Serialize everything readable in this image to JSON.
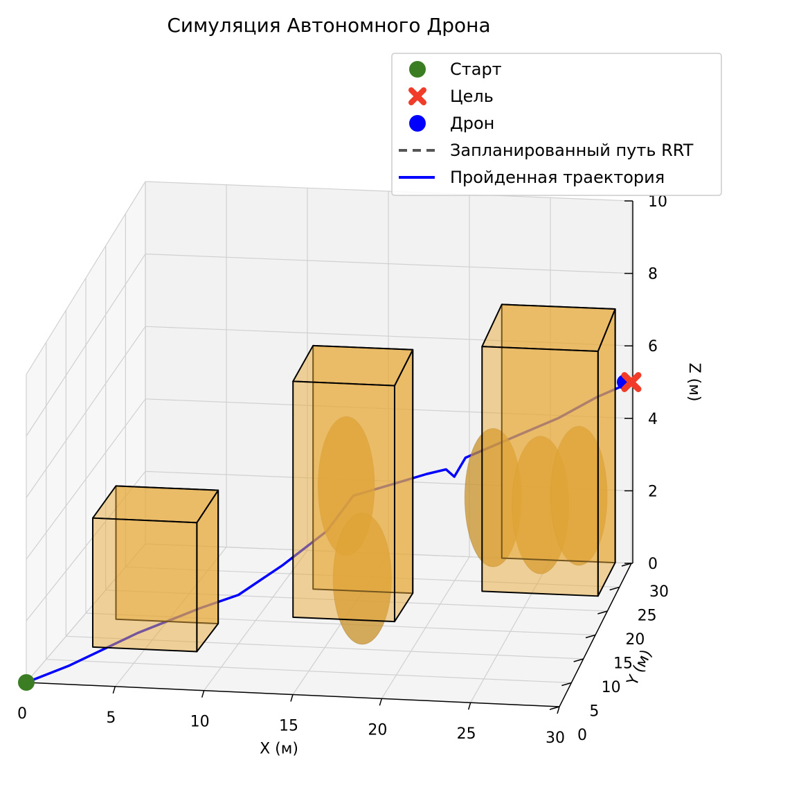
{
  "chart_data": {
    "type": "scatter3d",
    "title": "Симуляция Автономного Дрона",
    "xlabel": "X (м)",
    "ylabel": "Y (м)",
    "zlabel": "Z (м)",
    "xlim": [
      0,
      30
    ],
    "ylim": [
      0,
      30
    ],
    "zlim": [
      0,
      10
    ],
    "xticks": [
      "0",
      "5",
      "10",
      "15",
      "20",
      "25",
      "30"
    ],
    "yticks": [
      "0",
      "5",
      "10",
      "15",
      "20",
      "25",
      "30"
    ],
    "zticks": [
      "0",
      "2",
      "4",
      "6",
      "8",
      "10"
    ],
    "grid": true,
    "legend_position": "top-right",
    "legend": [
      {
        "key": "start",
        "label": "Старт",
        "color": "#3a7d22",
        "marker": "circle"
      },
      {
        "key": "goal",
        "label": "Цель",
        "color": "#f03c28",
        "marker": "x"
      },
      {
        "key": "drone",
        "label": "Дрон",
        "color": "#0000ff",
        "marker": "circle"
      },
      {
        "key": "planned",
        "label": "Запланированный путь RRT",
        "color": "#555555",
        "marker": "dashed-line"
      },
      {
        "key": "trajectory",
        "label": "Пройденная траектория",
        "color": "#0000ff",
        "marker": "solid-line"
      }
    ],
    "start": [
      0,
      0,
      0
    ],
    "goal": [
      30,
      30,
      5
    ],
    "drone": [
      30,
      30,
      5
    ],
    "obstacle_color": "#e8a93a",
    "buildings": [
      {
        "x": [
          2,
          8
        ],
        "y": [
          8,
          14
        ],
        "z": [
          0,
          4
        ]
      },
      {
        "x": [
          12,
          18
        ],
        "y": [
          16,
          22
        ],
        "z": [
          0,
          7
        ]
      },
      {
        "x": [
          22,
          29
        ],
        "y": [
          23,
          30
        ],
        "z": [
          0,
          7
        ]
      }
    ],
    "ellipsoids": [
      {
        "center": [
          14,
          22,
          3
        ],
        "radii": [
          2,
          2,
          2
        ]
      },
      {
        "center": [
          17,
          11,
          2
        ],
        "radii": [
          2,
          2,
          2
        ]
      },
      {
        "center": [
          23,
          21,
          3
        ],
        "radii": [
          2,
          2,
          2
        ]
      },
      {
        "center": [
          26,
          20,
          3
        ],
        "radii": [
          2,
          2,
          2
        ]
      },
      {
        "center": [
          28,
          22,
          3
        ],
        "radii": [
          2,
          2,
          2
        ]
      }
    ],
    "trajectory": [
      [
        0,
        0,
        0
      ],
      [
        2,
        2,
        0.3
      ],
      [
        5,
        6,
        0.8
      ],
      [
        8,
        9,
        1.2
      ],
      [
        10,
        10,
        1.5
      ],
      [
        12,
        13,
        2.0
      ],
      [
        14,
        16,
        2.6
      ],
      [
        15,
        19,
        3.2
      ],
      [
        17,
        20,
        3.4
      ],
      [
        19,
        21,
        3.6
      ],
      [
        20,
        22,
        3.6
      ],
      [
        20.5,
        22,
        3.4
      ],
      [
        21,
        23,
        3.8
      ],
      [
        23,
        25,
        4.0
      ],
      [
        26,
        27,
        4.4
      ],
      [
        28,
        29,
        4.7
      ],
      [
        30,
        30,
        5.0
      ]
    ]
  }
}
